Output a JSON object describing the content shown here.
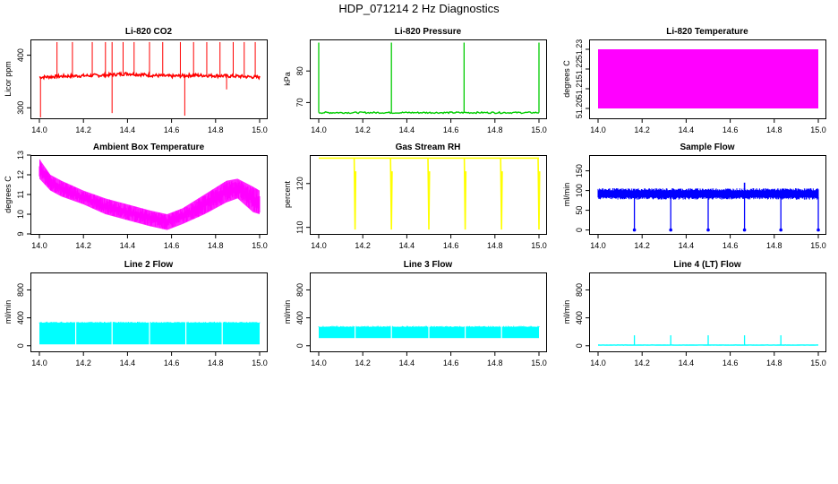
{
  "figure": {
    "title": "HDP_071214  2 Hz Diagnostics"
  },
  "chart_data": [
    {
      "id": "co2",
      "type": "line",
      "title": "Li-820 CO2",
      "ylabel": "Licor ppm",
      "xlabel": "",
      "color": "#ff0000",
      "xlim": [
        14.0,
        15.0
      ],
      "ylim": [
        280,
        430
      ],
      "xticks": [
        14.0,
        14.2,
        14.4,
        14.6,
        14.8,
        15.0
      ],
      "xtick_labels": [
        "14.0",
        "14.2",
        "14.4",
        "14.6",
        "14.8",
        "15.0"
      ],
      "yticks": [
        300,
        400
      ],
      "ytick_labels": [
        "300",
        "400"
      ],
      "baseline": [
        [
          14.0,
          358
        ],
        [
          14.1,
          360
        ],
        [
          14.2,
          361
        ],
        [
          14.3,
          362
        ],
        [
          14.4,
          365
        ],
        [
          14.5,
          362
        ],
        [
          14.6,
          360
        ],
        [
          14.7,
          362
        ],
        [
          14.8,
          361
        ],
        [
          14.9,
          360
        ],
        [
          15.0,
          358
        ]
      ],
      "spikes_up": [
        14.08,
        14.15,
        14.24,
        14.3,
        14.33,
        14.38,
        14.43,
        14.5,
        14.56,
        14.64,
        14.7,
        14.76,
        14.82,
        14.88,
        14.93,
        14.98
      ],
      "spike_up_value": 425,
      "spikes_down": [
        {
          "x": 14.005,
          "y": 280
        },
        {
          "x": 14.33,
          "y": 290
        },
        {
          "x": 14.66,
          "y": 285
        },
        {
          "x": 14.85,
          "y": 335
        }
      ]
    },
    {
      "id": "pressure",
      "type": "line",
      "title": "Li-820 Pressure",
      "ylabel": "kPa",
      "xlabel": "",
      "color": "#00cc00",
      "xlim": [
        14.0,
        15.0
      ],
      "ylim": [
        65,
        90
      ],
      "xticks": [
        14.0,
        14.2,
        14.4,
        14.6,
        14.8,
        15.0
      ],
      "xtick_labels": [
        "14.0",
        "14.2",
        "14.4",
        "14.6",
        "14.8",
        "15.0"
      ],
      "yticks": [
        70,
        80
      ],
      "ytick_labels": [
        "70",
        "80"
      ],
      "base_value": 66.8,
      "spikes_up": [
        14.0,
        14.33,
        14.66,
        15.0
      ],
      "spike_up_value": 89
    },
    {
      "id": "licor-temp",
      "type": "area",
      "title": "Li-820 Temperature",
      "ylabel": "degrees C",
      "xlabel": "",
      "color": "#ff00ff",
      "xlim": [
        14.0,
        15.0
      ],
      "ylim": [
        51.195,
        51.235
      ],
      "xticks": [
        14.0,
        14.2,
        14.4,
        14.6,
        14.8,
        15.0
      ],
      "xtick_labels": [
        "14.0",
        "14.2",
        "14.4",
        "14.6",
        "14.8",
        "15.0"
      ],
      "yticks": [
        51.2,
        51.21,
        51.22,
        51.23
      ],
      "ytick_labels": [
        "51.20",
        "51.21",
        "51.22",
        "51.23"
      ],
      "band": [
        51.2,
        51.23
      ]
    },
    {
      "id": "ambient",
      "type": "area",
      "title": "Ambient Box Temperature",
      "ylabel": "degrees C",
      "xlabel": "",
      "color": "#ff00ff",
      "xlim": [
        14.0,
        15.0
      ],
      "ylim": [
        9,
        13
      ],
      "xticks": [
        14.0,
        14.2,
        14.4,
        14.6,
        14.8,
        15.0
      ],
      "xtick_labels": [
        "14.0",
        "14.2",
        "14.4",
        "14.6",
        "14.8",
        "15.0"
      ],
      "yticks": [
        9,
        10,
        11,
        12,
        13
      ],
      "ytick_labels": [
        "9",
        "10",
        "11",
        "12",
        "13"
      ],
      "upper": [
        [
          14.0,
          12.8
        ],
        [
          14.05,
          12.0
        ],
        [
          14.1,
          11.7
        ],
        [
          14.2,
          11.2
        ],
        [
          14.3,
          10.8
        ],
        [
          14.4,
          10.5
        ],
        [
          14.5,
          10.2
        ],
        [
          14.58,
          10.0
        ],
        [
          14.65,
          10.3
        ],
        [
          14.75,
          11.0
        ],
        [
          14.85,
          11.7
        ],
        [
          14.9,
          11.8
        ],
        [
          14.97,
          11.4
        ],
        [
          15.0,
          11.2
        ]
      ],
      "lower": [
        [
          14.0,
          11.8
        ],
        [
          14.05,
          11.2
        ],
        [
          14.1,
          10.9
        ],
        [
          14.2,
          10.5
        ],
        [
          14.3,
          10.0
        ],
        [
          14.4,
          9.7
        ],
        [
          14.5,
          9.4
        ],
        [
          14.58,
          9.2
        ],
        [
          14.65,
          9.5
        ],
        [
          14.75,
          10.0
        ],
        [
          14.85,
          10.6
        ],
        [
          14.9,
          10.8
        ],
        [
          14.97,
          10.1
        ],
        [
          15.0,
          10.0
        ]
      ]
    },
    {
      "id": "rh",
      "type": "line",
      "title": "Gas Stream RH",
      "ylabel": "percent",
      "xlabel": "",
      "color": "#ffff00",
      "xlim": [
        14.0,
        15.0
      ],
      "ylim": [
        108.5,
        126.5
      ],
      "xticks": [
        14.0,
        14.2,
        14.4,
        14.6,
        14.8,
        15.0
      ],
      "xtick_labels": [
        "14.0",
        "14.2",
        "14.4",
        "14.6",
        "14.8",
        "15.0"
      ],
      "yticks": [
        110,
        120
      ],
      "ytick_labels": [
        "110",
        "120"
      ],
      "base_value": 125.8,
      "dips": [
        14.165,
        14.33,
        14.5,
        14.665,
        14.83,
        15.0
      ],
      "dip_value": 109.5
    },
    {
      "id": "sample-flow",
      "type": "area",
      "title": "Sample Flow",
      "ylabel": "ml/min",
      "xlabel": "",
      "color": "#0000ff",
      "xlim": [
        14.0,
        15.0
      ],
      "ylim": [
        -10,
        190
      ],
      "xticks": [
        14.0,
        14.2,
        14.4,
        14.6,
        14.8,
        15.0
      ],
      "xtick_labels": [
        "14.0",
        "14.2",
        "14.4",
        "14.6",
        "14.8",
        "15.0"
      ],
      "yticks": [
        0,
        50,
        100,
        150
      ],
      "ytick_labels": [
        "0",
        "50",
        "100",
        "150"
      ],
      "band": [
        83,
        100
      ],
      "dips": [
        14.165,
        14.33,
        14.5,
        14.665,
        14.83,
        15.0
      ],
      "dip_value": 0,
      "spike_max": 120
    },
    {
      "id": "line2",
      "type": "area",
      "title": "Line 2 Flow",
      "ylabel": "ml/min",
      "xlabel": "",
      "color": "#00ffff",
      "xlim": [
        14.0,
        15.0
      ],
      "ylim": [
        -80,
        1050
      ],
      "xticks": [
        14.0,
        14.2,
        14.4,
        14.6,
        14.8,
        15.0
      ],
      "xtick_labels": [
        "14.0",
        "14.2",
        "14.4",
        "14.6",
        "14.8",
        "15.0"
      ],
      "yticks": [
        0,
        400,
        800
      ],
      "ytick_labels": [
        "0",
        "400",
        "800"
      ],
      "band": [
        20,
        330
      ],
      "segment_breaks": [
        14.165,
        14.33,
        14.5,
        14.665,
        14.83
      ]
    },
    {
      "id": "line3",
      "type": "area",
      "title": "Line 3 Flow",
      "ylabel": "ml/min",
      "xlabel": "",
      "color": "#00ffff",
      "xlim": [
        14.0,
        15.0
      ],
      "ylim": [
        -80,
        1050
      ],
      "xticks": [
        14.0,
        14.2,
        14.4,
        14.6,
        14.8,
        15.0
      ],
      "xtick_labels": [
        "14.0",
        "14.2",
        "14.4",
        "14.6",
        "14.8",
        "15.0"
      ],
      "yticks": [
        0,
        400,
        800
      ],
      "ytick_labels": [
        "0",
        "400",
        "800"
      ],
      "band": [
        110,
        270
      ],
      "segment_breaks": [
        14.165,
        14.33,
        14.5,
        14.665,
        14.83
      ]
    },
    {
      "id": "line4",
      "type": "line",
      "title": "Line 4 (LT) Flow",
      "ylabel": "ml/min",
      "xlabel": "",
      "color": "#00ffff",
      "xlim": [
        14.0,
        15.0
      ],
      "ylim": [
        -80,
        1050
      ],
      "xticks": [
        14.0,
        14.2,
        14.4,
        14.6,
        14.8,
        15.0
      ],
      "xtick_labels": [
        "14.0",
        "14.2",
        "14.4",
        "14.6",
        "14.8",
        "15.0"
      ],
      "yticks": [
        0,
        400,
        800
      ],
      "ytick_labels": [
        "0",
        "400",
        "800"
      ],
      "base_value": 10,
      "spikes_up": [
        14.165,
        14.33,
        14.5,
        14.665,
        14.83
      ],
      "spike_up_value": 150
    }
  ]
}
